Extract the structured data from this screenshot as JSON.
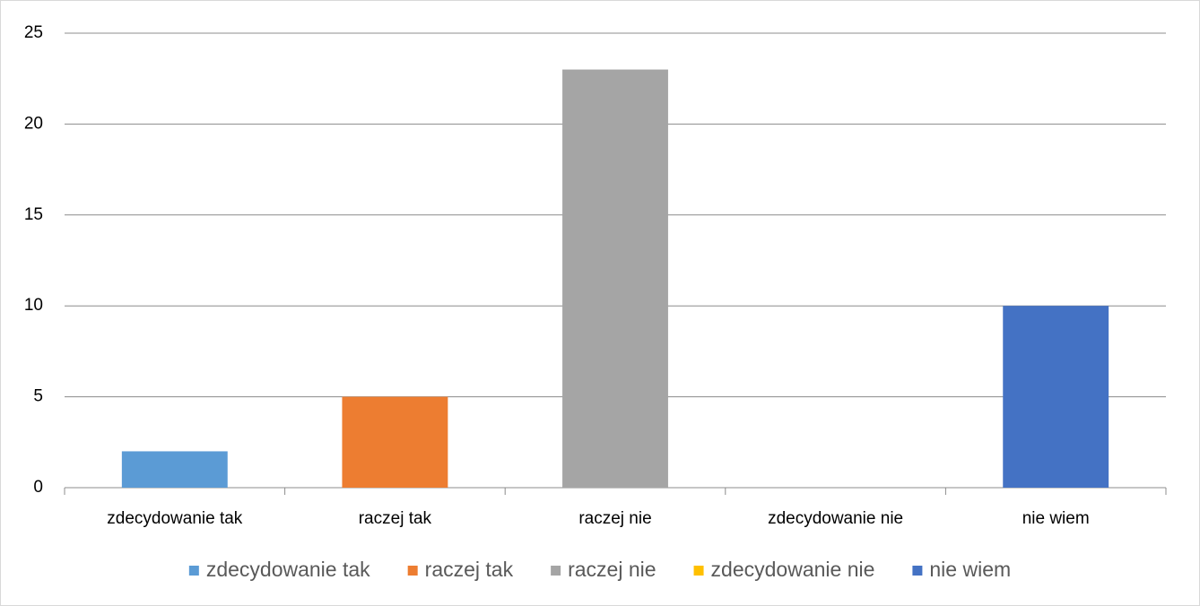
{
  "chart_data": {
    "type": "bar",
    "categories": [
      "zdecydowanie tak",
      "raczej tak",
      "raczej nie",
      "zdecydowanie nie",
      "nie wiem"
    ],
    "values": [
      2,
      5,
      23,
      0,
      10
    ],
    "colors": [
      "#5b9bd5",
      "#ed7d31",
      "#a5a5a5",
      "#ffc000",
      "#4472c4"
    ],
    "ylim": [
      0,
      25
    ],
    "yticks": [
      0,
      5,
      10,
      15,
      20,
      25
    ],
    "grid": true,
    "legend": "bottom"
  }
}
